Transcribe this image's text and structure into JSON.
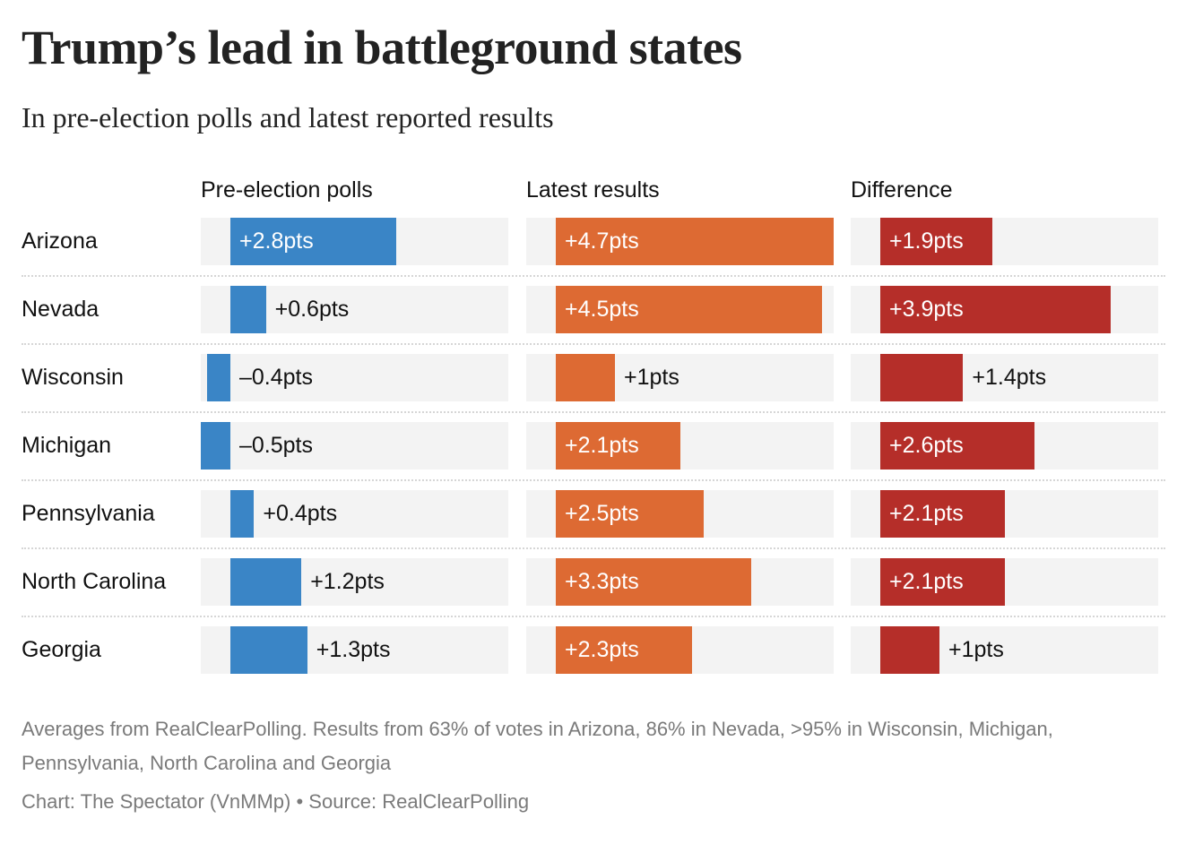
{
  "header": {
    "title": "Trump’s lead in battleground states",
    "subtitle": "In pre-election polls and latest reported results"
  },
  "footer": {
    "note": "Averages from RealClearPolling. Results from 63% of votes in Arizona, 86% in Nevada, >95% in Wisconsin, Michigan, Pennsylvania, North Carolina and Georgia",
    "credit": "Chart: The Spectator (VnMMp) • Source: RealClearPolling"
  },
  "chart_data": {
    "type": "bar",
    "title": "Trump’s lead in battleground states",
    "subtitle": "In pre-election polls and latest reported results",
    "orientation": "horizontal",
    "unit": "pts",
    "xlim": [
      -0.5,
      4.7
    ],
    "grid": false,
    "categories": [
      "Arizona",
      "Nevada",
      "Wisconsin",
      "Michigan",
      "Pennsylvania",
      "North Carolina",
      "Georgia"
    ],
    "series": [
      {
        "name": "Pre-election polls",
        "color": "#3a85c6",
        "values": [
          2.8,
          0.6,
          -0.4,
          -0.5,
          0.4,
          1.2,
          1.3
        ],
        "labels": [
          "+2.8pts",
          "+0.6pts",
          "–0.4pts",
          "–0.5pts",
          "+0.4pts",
          "+1.2pts",
          "+1.3pts"
        ]
      },
      {
        "name": "Latest results",
        "color": "#dd6a33",
        "values": [
          4.7,
          4.5,
          1,
          2.1,
          2.5,
          3.3,
          2.3
        ],
        "labels": [
          "+4.7pts",
          "+4.5pts",
          "+1pts",
          "+2.1pts",
          "+2.5pts",
          "+3.3pts",
          "+2.3pts"
        ]
      },
      {
        "name": "Difference",
        "color": "#b52e29",
        "values": [
          1.9,
          3.9,
          1.4,
          2.6,
          2.1,
          2.1,
          1
        ],
        "labels": [
          "+1.9pts",
          "+3.9pts",
          "+1.4pts",
          "+2.6pts",
          "+2.1pts",
          "+2.1pts",
          "+1pts"
        ]
      }
    ],
    "panel_background": "#f3f3f3",
    "source": "RealClearPolling"
  }
}
